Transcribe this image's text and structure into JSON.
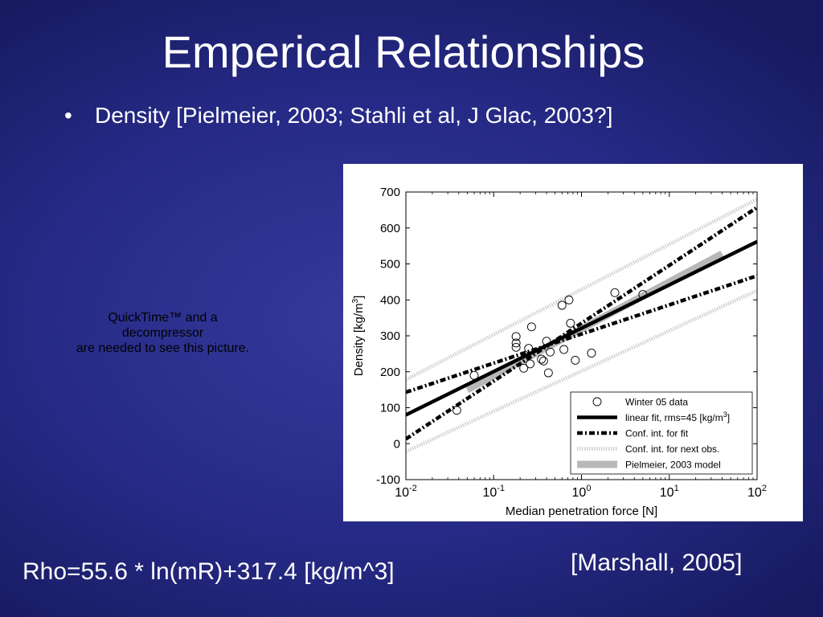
{
  "slide": {
    "title": "Emperical Relationships",
    "bullet_symbol": "•",
    "bullet_text": "Density [Pielmeier, 2003; Stahli et al, J Glac, 2003?]",
    "placeholder_lines": [
      "QuickTime™ and a",
      "decompressor",
      "are needed to see this picture."
    ],
    "citation": "[Marshall, 2005]",
    "equation": "Rho=55.6 * ln(mR)+317.4 [kg/m^3]"
  },
  "chart_data": {
    "type": "scatter",
    "title": "",
    "xlabel": "Median penetration force [N]",
    "ylabel": "Density [kg/m",
    "ylabel_sup": "3",
    "ylabel_end": "]",
    "x_scale": "log",
    "xlim": [
      0.01,
      100
    ],
    "ylim": [
      -100,
      700
    ],
    "x_ticks": [
      {
        "value": 0.01,
        "base": "10",
        "exp": "-2"
      },
      {
        "value": 0.1,
        "base": "10",
        "exp": "-1"
      },
      {
        "value": 1,
        "base": "10",
        "exp": "0"
      },
      {
        "value": 10,
        "base": "10",
        "exp": "1"
      },
      {
        "value": 100,
        "base": "10",
        "exp": "2"
      }
    ],
    "y_ticks": [
      {
        "value": 700,
        "label": "700"
      },
      {
        "value": 600,
        "label": "600"
      },
      {
        "value": 500,
        "label": "500"
      },
      {
        "value": 400,
        "label": "400"
      },
      {
        "value": 300,
        "label": "300"
      },
      {
        "value": 200,
        "label": "200"
      },
      {
        "value": 100,
        "label": "100"
      },
      {
        "value": 0,
        "label": "0"
      },
      {
        "value": -100,
        "label": "-100"
      }
    ],
    "grid": false,
    "legend_position": "bottom-right",
    "legend": [
      {
        "key": "data",
        "label": "Winter 05 data"
      },
      {
        "key": "fit",
        "label": "linear fit, rms=45 [kg/m",
        "sup": "3",
        "end": "]"
      },
      {
        "key": "conf_fit",
        "label": "Conf. int. for fit"
      },
      {
        "key": "conf_obs",
        "label": "Conf. int. for next obs."
      },
      {
        "key": "pielmeier",
        "label": "Pielmeier, 2003 model"
      }
    ],
    "series": [
      {
        "name": "Winter 05 data",
        "kind": "scatter",
        "points": [
          {
            "x": 0.038,
            "y": 93
          },
          {
            "x": 0.06,
            "y": 190
          },
          {
            "x": 0.18,
            "y": 298
          },
          {
            "x": 0.18,
            "y": 280
          },
          {
            "x": 0.18,
            "y": 268
          },
          {
            "x": 0.22,
            "y": 210
          },
          {
            "x": 0.25,
            "y": 265
          },
          {
            "x": 0.26,
            "y": 222
          },
          {
            "x": 0.27,
            "y": 325
          },
          {
            "x": 0.35,
            "y": 235
          },
          {
            "x": 0.37,
            "y": 230
          },
          {
            "x": 0.4,
            "y": 285
          },
          {
            "x": 0.42,
            "y": 197
          },
          {
            "x": 0.44,
            "y": 255
          },
          {
            "x": 0.6,
            "y": 385
          },
          {
            "x": 0.63,
            "y": 262
          },
          {
            "x": 0.72,
            "y": 400
          },
          {
            "x": 0.75,
            "y": 335
          },
          {
            "x": 0.85,
            "y": 232
          },
          {
            "x": 1.3,
            "y": 252
          },
          {
            "x": 2.4,
            "y": 420
          },
          {
            "x": 5.0,
            "y": 415
          }
        ]
      },
      {
        "name": "linear fit, rms=45 [kg/m3]",
        "kind": "line",
        "style": "solid-black",
        "x": [
          0.01,
          100
        ],
        "y": [
          80,
          562
        ]
      },
      {
        "name": "Conf. int. for fit (upper)",
        "kind": "line",
        "style": "dashdot-black",
        "x": [
          0.01,
          100
        ],
        "y": [
          143,
          467
        ]
      },
      {
        "name": "Conf. int. for fit (lower)",
        "kind": "line",
        "style": "dashdot-black",
        "x": [
          0.01,
          100
        ],
        "y": [
          13,
          657
        ]
      },
      {
        "name": "Conf. int. for next obs. (upper)",
        "kind": "line",
        "style": "dotted-gray",
        "x": [
          0.01,
          100
        ],
        "y": [
          178,
          680
        ]
      },
      {
        "name": "Conf. int. for next obs. (lower)",
        "kind": "line",
        "style": "dotted-gray",
        "x": [
          0.01,
          100
        ],
        "y": [
          -22,
          426
        ]
      },
      {
        "name": "Pielmeier, 2003 model",
        "kind": "line",
        "style": "thick-gray",
        "x": [
          0.05,
          40
        ],
        "y": [
          150,
          528
        ]
      }
    ]
  }
}
